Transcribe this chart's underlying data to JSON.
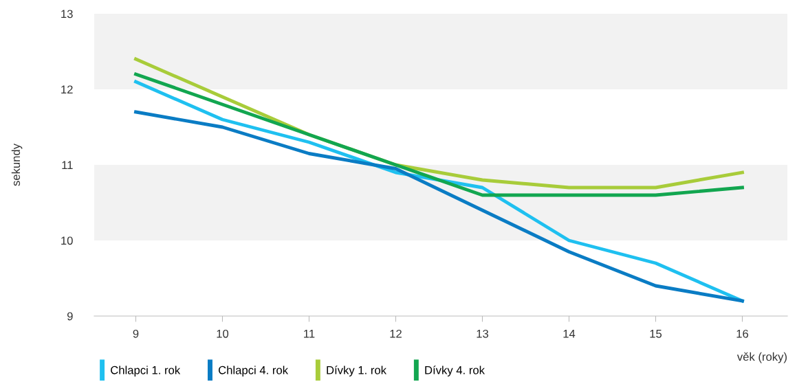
{
  "chart_data": {
    "type": "line",
    "xlabel": "věk (roky)",
    "ylabel": "sekundy",
    "categories": [
      "9",
      "10",
      "11",
      "12",
      "13",
      "14",
      "15",
      "16"
    ],
    "series": [
      {
        "name": "Chlapci 1. rok",
        "color": "#1fc0f0",
        "values": [
          12.1,
          11.6,
          11.3,
          10.9,
          10.7,
          10.0,
          9.7,
          9.2
        ]
      },
      {
        "name": "Chlapci 4. rok",
        "color": "#0a7cc4",
        "values": [
          11.7,
          11.5,
          11.15,
          10.95,
          10.4,
          9.85,
          9.4,
          9.2
        ]
      },
      {
        "name": "Dívky 1. rok",
        "color": "#a8cc3a",
        "values": [
          12.4,
          11.9,
          11.4,
          11.0,
          10.8,
          10.7,
          10.7,
          10.9
        ]
      },
      {
        "name": "Dívky 4. rok",
        "color": "#12a650",
        "values": [
          12.2,
          11.8,
          11.4,
          11.0,
          10.6,
          10.6,
          10.6,
          10.7
        ]
      }
    ],
    "ylim": [
      9,
      13
    ],
    "yticks": [
      9,
      10,
      11,
      12,
      13
    ],
    "bands": [
      {
        "axis": "y",
        "from": 12,
        "to": 13,
        "color": "#f2f2f2"
      },
      {
        "axis": "y",
        "from": 10,
        "to": 11,
        "color": "#f2f2f2"
      }
    ],
    "legend": "bottom",
    "marker": "none",
    "line_style": "solid"
  }
}
